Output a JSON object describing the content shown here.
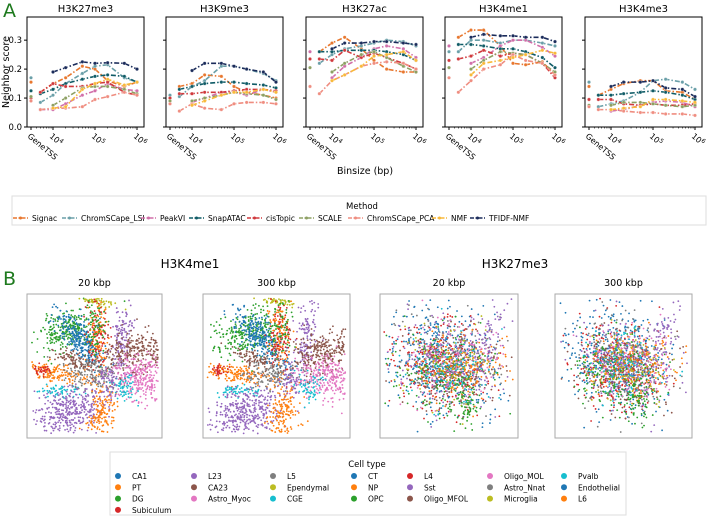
{
  "panel_labels": {
    "a": "A",
    "b": "B"
  },
  "panel_a": {
    "ylabel": "Neighbor score",
    "xlabel": "Binsize (bp)",
    "legend": {
      "title": "Method",
      "items": [
        {
          "name": "Signac",
          "color": "#e8772e"
        },
        {
          "name": "ChromSCape_LSI",
          "color": "#6a9fa8"
        },
        {
          "name": "PeakVI",
          "color": "#d16fa9"
        },
        {
          "name": "SnapATAC",
          "color": "#0f5b66"
        },
        {
          "name": "cisTopic",
          "color": "#d0393d"
        },
        {
          "name": "SCALE",
          "color": "#8da063"
        },
        {
          "name": "ChromSCape_PCA",
          "color": "#ef8d80"
        },
        {
          "name": "NMF",
          "color": "#f8b93a"
        },
        {
          "name": "TFIDF-NMF",
          "color": "#1a2b5a"
        }
      ]
    }
  },
  "chart_data": [
    {
      "type": "line",
      "title": "H3K27me3",
      "xscale": "log",
      "x": [
        "GeneTSS",
        5000,
        10000,
        20000,
        50000,
        100000,
        200000,
        500000,
        1000000
      ],
      "xticks": [
        "GeneTSS",
        "10^4",
        "10^5",
        "10^6"
      ],
      "yticks": [
        "0.0",
        "0.1",
        "0.2",
        "0.3"
      ],
      "ylim": [
        0,
        0.38
      ],
      "series": [
        {
          "name": "Signac",
          "values": [
            0.155,
            0.12,
            0.15,
            0.17,
            0.21,
            0.2,
            0.16,
            0.14,
            0.155
          ]
        },
        {
          "name": "ChromSCape_LSI",
          "values": [
            0.17,
            0.085,
            0.11,
            0.15,
            0.185,
            0.21,
            0.215,
            0.17,
            0.155
          ]
        },
        {
          "name": "PeakVI",
          "values": [
            null,
            0.06,
            0.06,
            0.08,
            0.11,
            0.125,
            0.15,
            0.13,
            0.125
          ]
        },
        {
          "name": "SnapATAC",
          "values": [
            0.125,
            0.115,
            0.13,
            0.15,
            0.165,
            0.175,
            0.18,
            0.175,
            0.155
          ]
        },
        {
          "name": "cisTopic",
          "values": [
            0.1,
            0.12,
            0.15,
            0.14,
            0.14,
            0.15,
            0.155,
            0.12,
            0.11
          ]
        },
        {
          "name": "SCALE",
          "values": [
            0.105,
            null,
            0.075,
            0.1,
            0.135,
            0.14,
            0.14,
            0.13,
            0.115
          ]
        },
        {
          "name": "ChromSCape_PCA",
          "values": [
            0.09,
            0.06,
            0.065,
            0.065,
            0.07,
            0.095,
            0.105,
            0.12,
            0.11
          ]
        },
        {
          "name": "NMF",
          "values": [
            null,
            null,
            0.065,
            0.07,
            0.13,
            0.15,
            0.165,
            0.145,
            0.155
          ]
        },
        {
          "name": "TFIDF-NMF",
          "values": [
            null,
            null,
            0.19,
            0.205,
            0.225,
            0.22,
            0.222,
            0.22,
            0.2
          ]
        }
      ]
    },
    {
      "type": "line",
      "title": "H3K9me3",
      "xscale": "log",
      "x": [
        "GeneTSS",
        5000,
        10000,
        20000,
        50000,
        100000,
        200000,
        500000,
        1000000
      ],
      "xticks": [
        "GeneTSS",
        "10^4",
        "10^5",
        "10^6"
      ],
      "ylim": [
        0,
        0.38
      ],
      "series": [
        {
          "name": "Signac",
          "values": [
            0.1,
            0.14,
            0.15,
            0.18,
            0.175,
            0.14,
            0.12,
            0.11,
            0.1
          ]
        },
        {
          "name": "ChromSCape_LSI",
          "values": [
            0.11,
            0.105,
            0.14,
            0.16,
            0.21,
            0.21,
            0.2,
            0.185,
            0.16
          ]
        },
        {
          "name": "PeakVI",
          "values": [
            null,
            null,
            0.085,
            0.1,
            0.12,
            0.12,
            0.11,
            0.13,
            0.12
          ]
        },
        {
          "name": "SnapATAC",
          "values": [
            null,
            0.13,
            0.14,
            0.15,
            0.155,
            0.155,
            0.15,
            0.145,
            0.135
          ]
        },
        {
          "name": "cisTopic",
          "values": [
            0.1,
            0.115,
            0.115,
            0.12,
            0.12,
            0.125,
            0.13,
            0.13,
            0.125
          ]
        },
        {
          "name": "SCALE",
          "values": [
            0.09,
            null,
            0.09,
            0.1,
            0.11,
            0.12,
            0.115,
            0.11,
            0.095
          ]
        },
        {
          "name": "ChromSCape_PCA",
          "values": [
            0.08,
            0.055,
            0.08,
            0.065,
            0.06,
            0.08,
            0.085,
            0.085,
            0.08
          ]
        },
        {
          "name": "NMF",
          "values": [
            null,
            null,
            0.075,
            0.09,
            0.11,
            0.12,
            0.12,
            0.13,
            0.12
          ]
        },
        {
          "name": "TFIDF-NMF",
          "values": [
            null,
            null,
            0.195,
            0.22,
            0.22,
            0.21,
            0.2,
            0.19,
            0.155
          ]
        }
      ]
    },
    {
      "type": "line",
      "title": "H3K27ac",
      "xscale": "log",
      "x": [
        "GeneTSS",
        5000,
        10000,
        20000,
        50000,
        100000,
        200000,
        500000,
        1000000
      ],
      "xticks": [
        "GeneTSS",
        "10^4",
        "10^5",
        "10^6"
      ],
      "ylim": [
        0,
        0.38
      ],
      "series": [
        {
          "name": "Signac",
          "values": [
            null,
            0.26,
            0.29,
            0.31,
            0.27,
            0.23,
            0.2,
            0.19,
            0.19
          ]
        },
        {
          "name": "ChromSCape_LSI",
          "values": [
            null,
            0.22,
            0.25,
            0.27,
            0.28,
            0.29,
            0.3,
            0.295,
            0.28
          ]
        },
        {
          "name": "PeakVI",
          "values": [
            0.26,
            null,
            0.17,
            0.21,
            0.24,
            0.27,
            0.28,
            0.27,
            0.24
          ]
        },
        {
          "name": "SnapATAC",
          "values": [
            null,
            0.26,
            0.26,
            0.265,
            0.265,
            0.265,
            0.26,
            0.25,
            0.23
          ]
        },
        {
          "name": "cisTopic",
          "values": [
            0.235,
            0.235,
            0.23,
            0.265,
            0.24,
            0.255,
            0.24,
            0.22,
            0.2
          ]
        },
        {
          "name": "SCALE",
          "values": [
            0.205,
            null,
            0.19,
            0.22,
            0.25,
            0.26,
            0.24,
            0.21,
            0.19
          ]
        },
        {
          "name": "ChromSCape_PCA",
          "values": [
            0.14,
            0.115,
            0.16,
            0.18,
            0.21,
            0.22,
            0.225,
            0.22,
            0.2
          ]
        },
        {
          "name": "NMF",
          "values": [
            null,
            null,
            0.16,
            0.18,
            0.21,
            0.245,
            0.25,
            0.26,
            0.23
          ]
        },
        {
          "name": "TFIDF-NMF",
          "values": [
            null,
            null,
            0.27,
            0.29,
            0.29,
            0.295,
            0.295,
            0.29,
            0.285
          ]
        }
      ]
    },
    {
      "type": "line",
      "title": "H3K4me1",
      "xscale": "log",
      "x": [
        "GeneTSS",
        5000,
        10000,
        20000,
        50000,
        100000,
        200000,
        500000,
        1000000
      ],
      "xticks": [
        "GeneTSS",
        "10^4",
        "10^5",
        "10^6"
      ],
      "ylim": [
        0,
        0.38
      ],
      "series": [
        {
          "name": "Signac",
          "values": [
            null,
            0.31,
            0.335,
            0.335,
            0.28,
            0.22,
            0.215,
            0.225,
            0.18
          ]
        },
        {
          "name": "ChromSCape_LSI",
          "values": [
            0.26,
            0.26,
            0.3,
            0.3,
            0.29,
            0.3,
            0.3,
            0.29,
            0.28
          ]
        },
        {
          "name": "PeakVI",
          "values": [
            0.28,
            null,
            0.22,
            0.24,
            0.28,
            0.3,
            0.3,
            0.275,
            0.245
          ]
        },
        {
          "name": "SnapATAC",
          "values": [
            null,
            0.285,
            0.285,
            0.28,
            0.27,
            0.27,
            0.26,
            0.24,
            0.205
          ]
        },
        {
          "name": "cisTopic",
          "values": [
            0.23,
            0.235,
            0.245,
            0.265,
            0.245,
            0.255,
            0.25,
            0.22,
            0.17
          ]
        },
        {
          "name": "SCALE",
          "values": [
            0.205,
            null,
            0.2,
            0.23,
            0.26,
            0.255,
            0.25,
            0.22,
            0.19
          ]
        },
        {
          "name": "ChromSCape_PCA",
          "values": [
            0.17,
            0.12,
            0.16,
            0.2,
            0.215,
            0.25,
            0.23,
            0.22,
            0.18
          ]
        },
        {
          "name": "NMF",
          "values": [
            null,
            null,
            0.18,
            0.22,
            0.23,
            0.24,
            0.25,
            0.265,
            0.255
          ]
        },
        {
          "name": "TFIDF-NMF",
          "values": [
            null,
            null,
            0.31,
            0.32,
            0.315,
            0.315,
            0.31,
            0.31,
            0.295
          ]
        }
      ]
    },
    {
      "type": "line",
      "title": "H3K4me3",
      "xscale": "log",
      "x": [
        "GeneTSS",
        5000,
        10000,
        20000,
        50000,
        100000,
        200000,
        500000,
        1000000
      ],
      "xticks": [
        "GeneTSS",
        "10^4",
        "10^5",
        "10^6"
      ],
      "ylim": [
        0,
        0.38
      ],
      "series": [
        {
          "name": "Signac",
          "values": [
            0.14,
            0.11,
            0.13,
            0.15,
            0.16,
            0.16,
            0.125,
            0.12,
            0.095
          ]
        },
        {
          "name": "ChromSCape_LSI",
          "values": [
            0.155,
            0.07,
            0.08,
            0.09,
            0.12,
            0.16,
            0.165,
            0.155,
            0.13
          ]
        },
        {
          "name": "PeakVI",
          "values": [
            null,
            null,
            0.055,
            0.06,
            0.075,
            0.085,
            0.09,
            0.085,
            0.07
          ]
        },
        {
          "name": "SnapATAC",
          "values": [
            null,
            0.11,
            0.11,
            0.115,
            0.12,
            0.125,
            0.12,
            0.11,
            0.095
          ]
        },
        {
          "name": "cisTopic",
          "values": [
            0.095,
            0.095,
            0.095,
            0.08,
            0.075,
            0.08,
            0.075,
            0.075,
            0.08
          ]
        },
        {
          "name": "SCALE",
          "values": [
            0.075,
            null,
            0.075,
            0.085,
            0.085,
            0.08,
            0.075,
            0.07,
            0.075
          ]
        },
        {
          "name": "ChromSCape_PCA",
          "values": [
            0.07,
            0.06,
            0.06,
            0.055,
            0.05,
            0.05,
            0.045,
            0.045,
            0.04
          ]
        },
        {
          "name": "NMF",
          "values": [
            null,
            null,
            0.06,
            0.065,
            0.07,
            0.095,
            0.095,
            0.09,
            0.085
          ]
        },
        {
          "name": "TFIDF-NMF",
          "values": [
            null,
            null,
            0.14,
            0.155,
            0.155,
            0.16,
            0.135,
            0.13,
            0.105
          ]
        }
      ]
    }
  ],
  "panel_b": {
    "groups": [
      {
        "title": "H3K4me1",
        "plots": [
          {
            "title": "20 kbp",
            "type": "scatter"
          },
          {
            "title": "300 kbp",
            "type": "scatter"
          }
        ]
      },
      {
        "title": "H3K27me3",
        "plots": [
          {
            "title": "20 kbp",
            "type": "scatter"
          },
          {
            "title": "300 kbp",
            "type": "scatter"
          }
        ]
      }
    ],
    "legend": {
      "title": "Cell type",
      "columns": [
        [
          {
            "name": "CA1",
            "color": "#1f77b4"
          },
          {
            "name": "PT",
            "color": "#ff7f0e"
          },
          {
            "name": "DG",
            "color": "#2ca02c"
          },
          {
            "name": "Subiculum",
            "color": "#d62728"
          }
        ],
        [
          {
            "name": "L23",
            "color": "#9467bd"
          },
          {
            "name": "CA23",
            "color": "#8c564b"
          },
          {
            "name": "Astro_Myoc",
            "color": "#e377c2"
          }
        ],
        [
          {
            "name": "L5",
            "color": "#7f7f7f"
          },
          {
            "name": "Ependymal",
            "color": "#bcbd22"
          },
          {
            "name": "CGE",
            "color": "#17becf"
          }
        ],
        [
          {
            "name": "CT",
            "color": "#1f77b4"
          },
          {
            "name": "NP",
            "color": "#ff7f0e"
          },
          {
            "name": "OPC",
            "color": "#2ca02c"
          }
        ],
        [
          {
            "name": "L4",
            "color": "#d62728"
          },
          {
            "name": "Sst",
            "color": "#9467bd"
          },
          {
            "name": "Oligo_MFOL",
            "color": "#8c564b"
          }
        ],
        [
          {
            "name": "Oligo_MOL",
            "color": "#e377c2"
          },
          {
            "name": "Astro_Nnat",
            "color": "#7f7f7f"
          },
          {
            "name": "Microglia",
            "color": "#bcbd22"
          }
        ],
        [
          {
            "name": "Pvalb",
            "color": "#17becf"
          },
          {
            "name": "Endothelial",
            "color": "#1f77b4"
          },
          {
            "name": "L6",
            "color": "#ff7f0e"
          }
        ]
      ]
    },
    "label_color": "#1e7a1e"
  }
}
